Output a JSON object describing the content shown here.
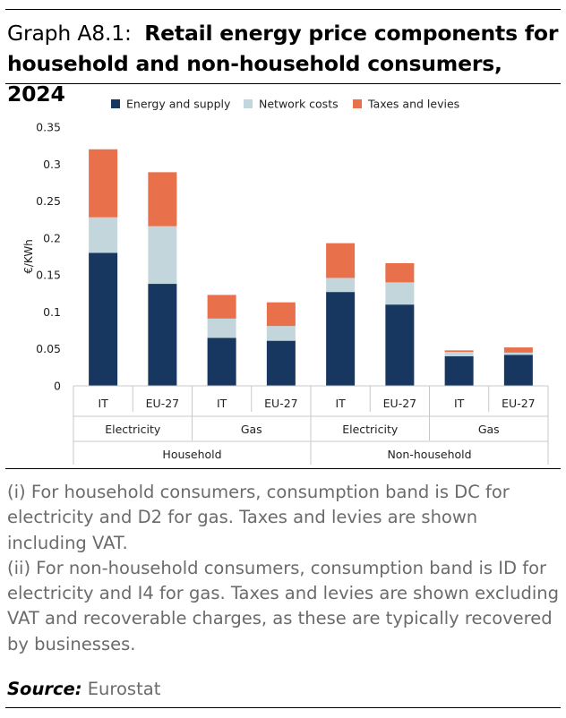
{
  "header": {
    "label": "Graph A8.1:",
    "title": "Retail energy price components for household and non-household consumers, 2024"
  },
  "chart_data": {
    "type": "bar",
    "stacked": true,
    "ylabel": "€/KWh",
    "ylim": [
      0,
      0.35
    ],
    "yticks": [
      "0",
      "0.05",
      "0.1",
      "0.15",
      "0.2",
      "0.25",
      "0.3",
      "0.35"
    ],
    "grid": false,
    "legend_position": "top",
    "categories": [
      "IT",
      "EU-27",
      "IT",
      "EU-27",
      "IT",
      "EU-27",
      "IT",
      "EU-27"
    ],
    "groups_level1": [
      "Electricity",
      "Gas",
      "Electricity",
      "Gas"
    ],
    "groups_level2": [
      "Household",
      "Non-household"
    ],
    "series": [
      {
        "name": "Energy and supply",
        "color": "#173760",
        "values": [
          0.18,
          0.138,
          0.065,
          0.061,
          0.127,
          0.11,
          0.04,
          0.042
        ]
      },
      {
        "name": "Network costs",
        "color": "#c3d6dc",
        "values": [
          0.048,
          0.078,
          0.026,
          0.02,
          0.019,
          0.03,
          0.006,
          0.003
        ]
      },
      {
        "name": "Taxes and levies",
        "color": "#e8714b",
        "values": [
          0.092,
          0.073,
          0.032,
          0.032,
          0.047,
          0.026,
          0.002,
          0.007
        ]
      }
    ]
  },
  "notes": [
    "(i) For household consumers, consumption band is DC for electricity and D2 for gas. Taxes and levies are shown including VAT.",
    "(ii) For non-household consumers, consumption band is ID for electricity and I4 for gas. Taxes and levies are shown excluding VAT and recoverable charges, as these are typically recovered by businesses."
  ],
  "source": {
    "label": "Source:",
    "value": "Eurostat"
  }
}
